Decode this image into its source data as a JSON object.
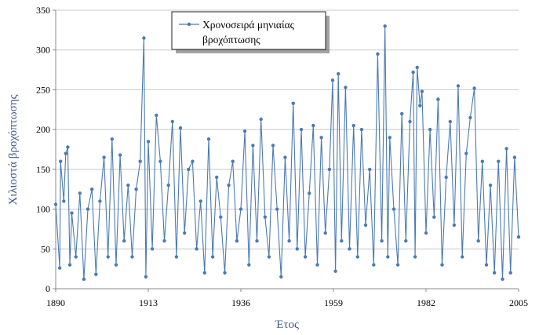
{
  "chart_data": {
    "type": "line",
    "title": "",
    "xlabel": "Έτος",
    "ylabel": "Χιλιοστά βροχόπτωσης",
    "xlim": [
      1890,
      2005
    ],
    "ylim": [
      0,
      350
    ],
    "x_ticks": [
      "1890",
      "1913",
      "1936",
      "1959",
      "1982",
      "2005"
    ],
    "y_ticks": [
      "0",
      "50",
      "100",
      "150",
      "200",
      "250",
      "300",
      "350"
    ],
    "grid": "horizontal",
    "legend_position": "top-center",
    "series": [
      {
        "name": "Χρονοσειρά μηνιαίας βροχόπτωσης",
        "color": "#4a7ab5",
        "marker": "circle",
        "points": [
          [
            1890.0,
            106
          ],
          [
            1891.0,
            26
          ],
          [
            1891.2,
            160
          ],
          [
            1892.0,
            110
          ],
          [
            1892.5,
            170
          ],
          [
            1893.0,
            178
          ],
          [
            1893.5,
            30
          ],
          [
            1894.0,
            95
          ],
          [
            1895.0,
            40
          ],
          [
            1896.0,
            120
          ],
          [
            1897.0,
            12
          ],
          [
            1898.0,
            100
          ],
          [
            1899.0,
            125
          ],
          [
            1900.0,
            18
          ],
          [
            1901.0,
            110
          ],
          [
            1902.0,
            165
          ],
          [
            1903.0,
            40
          ],
          [
            1904.0,
            188
          ],
          [
            1905.0,
            30
          ],
          [
            1906.0,
            168
          ],
          [
            1907.0,
            60
          ],
          [
            1908.0,
            130
          ],
          [
            1909.0,
            40
          ],
          [
            1910.0,
            125
          ],
          [
            1911.0,
            160
          ],
          [
            1911.9,
            315
          ],
          [
            1912.4,
            15
          ],
          [
            1913.0,
            185
          ],
          [
            1914.0,
            50
          ],
          [
            1915.0,
            218
          ],
          [
            1916.0,
            160
          ],
          [
            1917.0,
            60
          ],
          [
            1918.0,
            130
          ],
          [
            1919.0,
            210
          ],
          [
            1920.0,
            40
          ],
          [
            1921.0,
            202
          ],
          [
            1922.0,
            70
          ],
          [
            1923.0,
            150
          ],
          [
            1924.0,
            160
          ],
          [
            1925.0,
            50
          ],
          [
            1926.0,
            110
          ],
          [
            1927.0,
            20
          ],
          [
            1928.0,
            188
          ],
          [
            1929.0,
            40
          ],
          [
            1930.0,
            140
          ],
          [
            1931.0,
            90
          ],
          [
            1932.0,
            20
          ],
          [
            1933.0,
            130
          ],
          [
            1934.0,
            160
          ],
          [
            1935.0,
            60
          ],
          [
            1936.0,
            100
          ],
          [
            1937.0,
            198
          ],
          [
            1938.0,
            30
          ],
          [
            1939.0,
            180
          ],
          [
            1940.0,
            60
          ],
          [
            1941.0,
            213
          ],
          [
            1942.0,
            90
          ],
          [
            1943.0,
            40
          ],
          [
            1944.0,
            180
          ],
          [
            1945.0,
            100
          ],
          [
            1946.0,
            15
          ],
          [
            1947.0,
            165
          ],
          [
            1948.0,
            60
          ],
          [
            1949.0,
            233
          ],
          [
            1950.0,
            50
          ],
          [
            1951.0,
            200
          ],
          [
            1952.0,
            40
          ],
          [
            1953.0,
            120
          ],
          [
            1954.0,
            205
          ],
          [
            1955.0,
            30
          ],
          [
            1956.0,
            190
          ],
          [
            1957.0,
            70
          ],
          [
            1958.0,
            150
          ],
          [
            1958.8,
            262
          ],
          [
            1959.5,
            22
          ],
          [
            1960.2,
            270
          ],
          [
            1961.0,
            60
          ],
          [
            1962.0,
            253
          ],
          [
            1963.0,
            50
          ],
          [
            1964.0,
            205
          ],
          [
            1965.0,
            40
          ],
          [
            1966.0,
            200
          ],
          [
            1967.0,
            80
          ],
          [
            1968.0,
            150
          ],
          [
            1969.0,
            30
          ],
          [
            1970.0,
            295
          ],
          [
            1971.0,
            60
          ],
          [
            1971.8,
            330
          ],
          [
            1972.5,
            40
          ],
          [
            1973.0,
            190
          ],
          [
            1974.0,
            100
          ],
          [
            1975.0,
            30
          ],
          [
            1976.0,
            220
          ],
          [
            1977.0,
            60
          ],
          [
            1978.0,
            210
          ],
          [
            1978.8,
            272
          ],
          [
            1979.3,
            40
          ],
          [
            1979.8,
            278
          ],
          [
            1980.5,
            230
          ],
          [
            1981.0,
            248
          ],
          [
            1982.0,
            70
          ],
          [
            1983.0,
            200
          ],
          [
            1984.0,
            90
          ],
          [
            1985.0,
            238
          ],
          [
            1986.0,
            30
          ],
          [
            1987.0,
            140
          ],
          [
            1988.0,
            210
          ],
          [
            1989.0,
            80
          ],
          [
            1990.0,
            255
          ],
          [
            1991.0,
            40
          ],
          [
            1992.0,
            170
          ],
          [
            1993.0,
            215
          ],
          [
            1994.0,
            252
          ],
          [
            1995.0,
            60
          ],
          [
            1996.0,
            160
          ],
          [
            1997.0,
            30
          ],
          [
            1998.0,
            130
          ],
          [
            1999.0,
            20
          ],
          [
            2000.0,
            160
          ],
          [
            2001.0,
            12
          ],
          [
            2002.0,
            176
          ],
          [
            2003.0,
            20
          ],
          [
            2004.0,
            165
          ],
          [
            2005.0,
            65
          ]
        ]
      }
    ]
  }
}
